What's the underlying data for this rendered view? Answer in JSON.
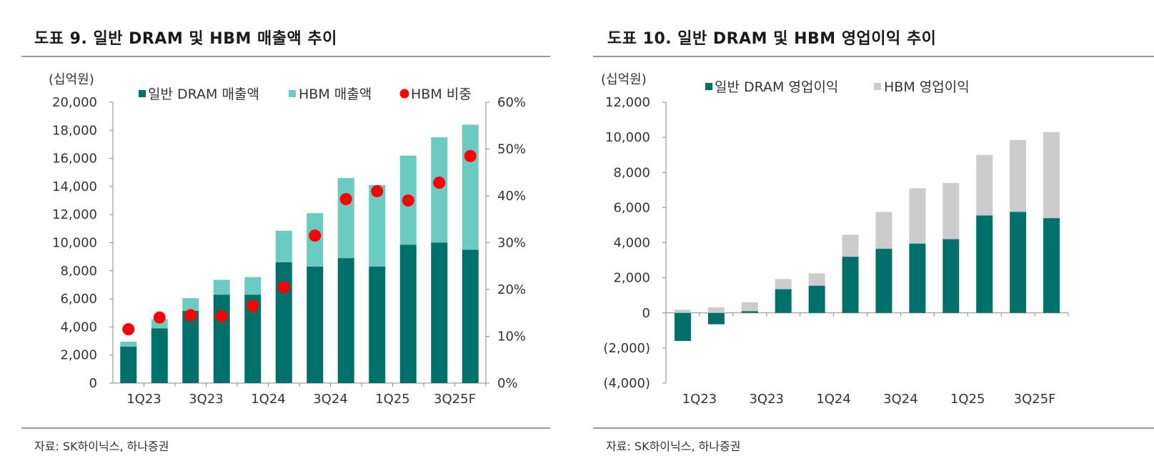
{
  "left": {
    "title": "도표 9. 일반 DRAM 및 HBM 매출액 추이",
    "source": "자료: SK하이닉스, 하나증권",
    "chart_data": {
      "type": "bar",
      "stacked": true,
      "unit_label": "(십억원)",
      "categories": [
        "1Q23",
        "2Q23",
        "3Q23",
        "4Q23",
        "1Q24",
        "2Q24",
        "3Q24",
        "4Q24",
        "1Q25",
        "2Q25",
        "3Q25F",
        "4Q25F"
      ],
      "x_tick_labels": [
        "1Q23",
        "",
        "3Q23",
        "",
        "1Q24",
        "",
        "3Q24",
        "",
        "1Q25",
        "",
        "3Q25F",
        ""
      ],
      "series": [
        {
          "name": "일반 DRAM 매출액",
          "color": "#00706a",
          "axis": "left",
          "values": [
            2600,
            3900,
            5150,
            6300,
            6300,
            8600,
            8300,
            8900,
            8300,
            9850,
            10000,
            9500
          ]
        },
        {
          "name": "HBM 매출액",
          "color": "#6ccbc0",
          "axis": "left",
          "values": [
            350,
            650,
            900,
            1050,
            1250,
            2250,
            3800,
            5700,
            5800,
            6350,
            7500,
            8900
          ]
        },
        {
          "name": "HBM 비중",
          "color": "#ff0000",
          "type": "scatter",
          "axis": "right",
          "values": [
            11.5,
            14.0,
            14.5,
            14.3,
            16.5,
            20.5,
            31.5,
            39.3,
            41.0,
            39.0,
            42.8,
            48.5
          ]
        }
      ],
      "ylim": [
        0,
        20000
      ],
      "y_ticks": [
        0,
        2000,
        4000,
        6000,
        8000,
        10000,
        12000,
        14000,
        16000,
        18000,
        20000
      ],
      "y_tick_labels": [
        "0",
        "2,000",
        "4,000",
        "6,000",
        "8,000",
        "10,000",
        "12,000",
        "14,000",
        "16,000",
        "18,000",
        "20,000"
      ],
      "y2lim": [
        0,
        60
      ],
      "y2_ticks": [
        0,
        10,
        20,
        30,
        40,
        50,
        60
      ],
      "y2_tick_labels": [
        "0%",
        "10%",
        "20%",
        "30%",
        "40%",
        "50%",
        "60%"
      ],
      "legend_position": "top",
      "grid": false
    }
  },
  "right": {
    "title": "도표 10. 일반 DRAM 및 HBM 영업이익 추이",
    "source": "자료: SK하이닉스, 하나증권",
    "chart_data": {
      "type": "bar",
      "stacked": true,
      "unit_label": "(십억원)",
      "categories": [
        "1Q23",
        "2Q23",
        "3Q23",
        "4Q23",
        "1Q24",
        "2Q24",
        "3Q24",
        "4Q24",
        "1Q25",
        "2Q25",
        "3Q25F",
        "4Q25F"
      ],
      "x_tick_labels": [
        "1Q23",
        "",
        "3Q23",
        "",
        "1Q24",
        "",
        "3Q24",
        "",
        "1Q25",
        "",
        "3Q25F",
        ""
      ],
      "series": [
        {
          "name": "일반 DRAM 영업이익",
          "color": "#00706a",
          "values": [
            -1600,
            -650,
            100,
            1350,
            1550,
            3200,
            3650,
            3950,
            4200,
            5550,
            5750,
            5400
          ]
        },
        {
          "name": "HBM 영업이익",
          "color": "#cccccc",
          "values": [
            180,
            320,
            500,
            580,
            700,
            1250,
            2100,
            3150,
            3200,
            3450,
            4100,
            4900
          ]
        }
      ],
      "ylim": [
        -4000,
        12000
      ],
      "y_ticks": [
        -4000,
        -2000,
        0,
        2000,
        4000,
        6000,
        8000,
        10000,
        12000
      ],
      "y_tick_labels": [
        "(4,000)",
        "(2,000)",
        "0",
        "2,000",
        "4,000",
        "6,000",
        "8,000",
        "10,000",
        "12,000"
      ],
      "legend_position": "top",
      "grid": false
    }
  }
}
